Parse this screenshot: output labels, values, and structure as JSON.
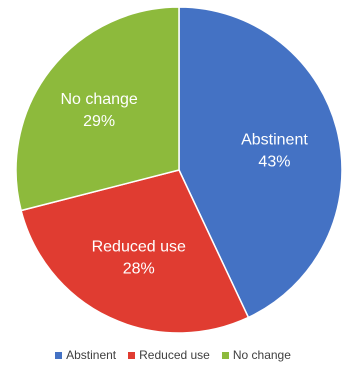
{
  "chart_data": {
    "type": "pie",
    "categories": [
      "Abstinent",
      "Reduced use",
      "No change"
    ],
    "values": [
      43,
      28,
      29
    ],
    "value_labels": [
      "43%",
      "28%",
      "29%"
    ],
    "colors": [
      "#4472C4",
      "#E03C31",
      "#8DBA3C"
    ],
    "start_angle_deg": 0,
    "direction": "clockwise",
    "legend": {
      "position": "bottom",
      "entries": [
        "Abstinent",
        "Reduced use",
        "No change"
      ]
    }
  }
}
